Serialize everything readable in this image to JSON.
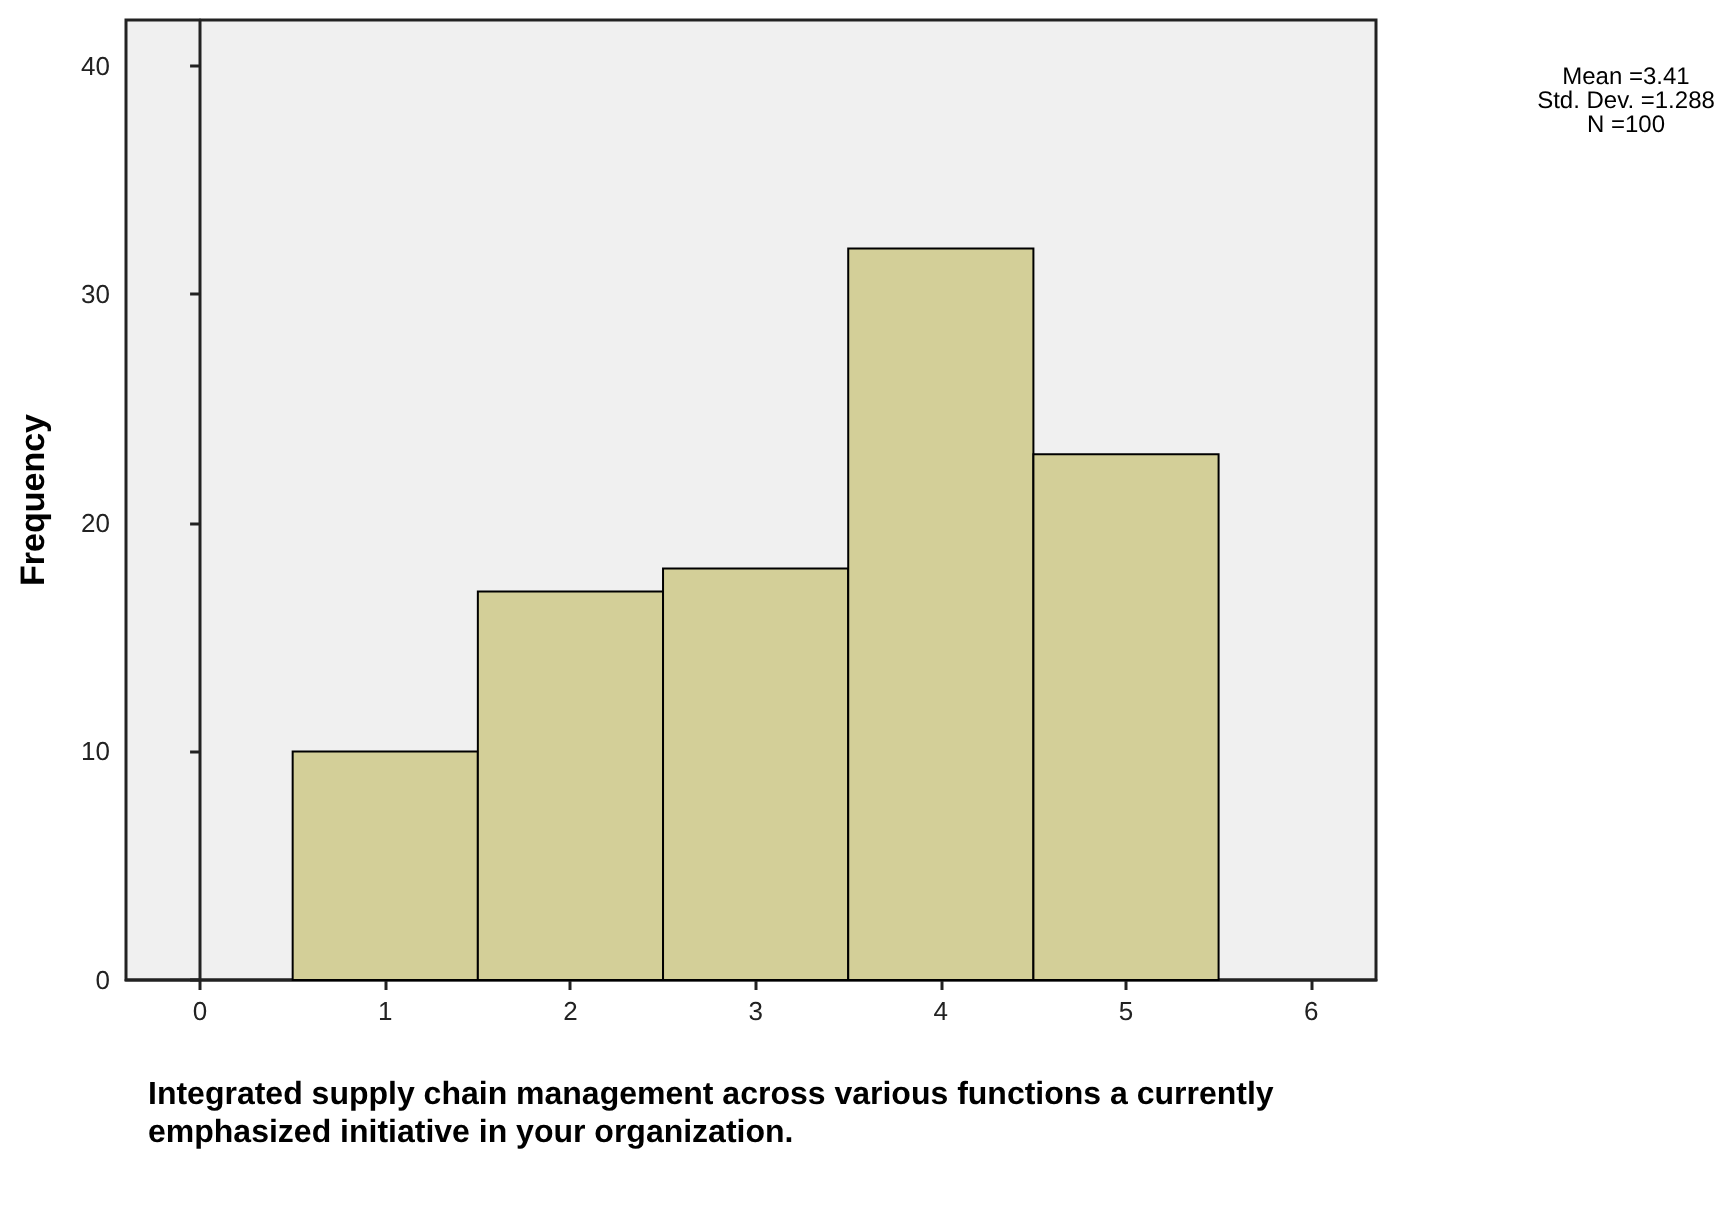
{
  "chart_data": {
    "type": "histogram",
    "xlabel": "Integrated supply chain management across various functions a currently emphasized initiative in your organization.",
    "ylabel": "Frequency",
    "annotations": [
      "Mean =3.41",
      "Std. Dev. =1.288",
      "N =100"
    ],
    "bins": [
      0.5,
      1.5,
      2.5,
      3.5,
      4.5,
      5.5
    ],
    "values": [
      10,
      17,
      18,
      32,
      23
    ],
    "color": "#d3cf98",
    "xlim": [
      -0.4,
      6.35
    ],
    "xticks": [
      0,
      1,
      2,
      3,
      4,
      5,
      6
    ],
    "ylim": [
      0,
      42
    ],
    "yticks": [
      0,
      10,
      20,
      30,
      40
    ]
  }
}
